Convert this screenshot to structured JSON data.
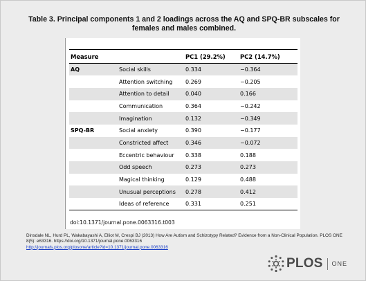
{
  "title": "Table 3. Principal components 1 and 2 loadings across the AQ and SPQ-BR subscales for females and males combined.",
  "table": {
    "headers": [
      "Measure",
      "",
      "PC1 (29.2%)",
      "PC2 (14.7%)"
    ],
    "rows": [
      {
        "group": "AQ",
        "subscale": "Social skills",
        "pc1": "0.334",
        "pc2": "−0.364"
      },
      {
        "group": "",
        "subscale": "Attention switching",
        "pc1": "0.269",
        "pc2": "−0.205"
      },
      {
        "group": "",
        "subscale": "Attention to detail",
        "pc1": "0.040",
        "pc2": "0.166"
      },
      {
        "group": "",
        "subscale": "Communication",
        "pc1": "0.364",
        "pc2": "−0.242"
      },
      {
        "group": "",
        "subscale": "Imagination",
        "pc1": "0.132",
        "pc2": "−0.349"
      },
      {
        "group": "SPQ-BR",
        "subscale": "Social anxiety",
        "pc1": "0.390",
        "pc2": "−0.177"
      },
      {
        "group": "",
        "subscale": "Constricted affect",
        "pc1": "0.346",
        "pc2": "−0.072"
      },
      {
        "group": "",
        "subscale": "Eccentric behaviour",
        "pc1": "0.338",
        "pc2": "0.188"
      },
      {
        "group": "",
        "subscale": "Odd speech",
        "pc1": "0.273",
        "pc2": "0.273"
      },
      {
        "group": "",
        "subscale": "Magical thinking",
        "pc1": "0.129",
        "pc2": "0.488"
      },
      {
        "group": "",
        "subscale": "Unusual perceptions",
        "pc1": "0.278",
        "pc2": "0.412"
      },
      {
        "group": "",
        "subscale": "Ideas of reference",
        "pc1": "0.331",
        "pc2": "0.251"
      }
    ]
  },
  "doi": "doi:10.1371/journal.pone.0063316.t003",
  "citation": {
    "text": "Dinsdale NL, Hurd PL, Wakabayashi A, Elliot M, Crespi BJ (2013) How Are Autism and Schizotypy Related? Evidence from a Non-Clinical Population. PLOS ONE 8(5): e63316. https://doi.org/10.1371/journal.pone.0063316",
    "link": "http://journals.plos.org/plosone/article?id=10.1371/journal.pone.0063316"
  },
  "logo": {
    "name": "PLOS",
    "suffix": "ONE",
    "icon": "plos-logo-icon"
  }
}
